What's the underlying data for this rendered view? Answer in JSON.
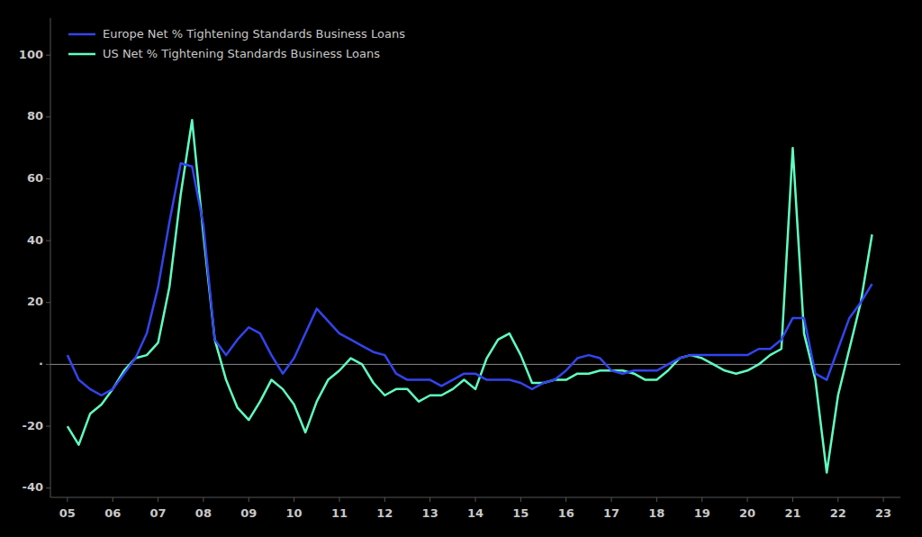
{
  "chart_data": {
    "type": "line",
    "x": [
      2005,
      2005.25,
      2005.5,
      2005.75,
      2006,
      2006.25,
      2006.5,
      2006.75,
      2007,
      2007.25,
      2007.5,
      2007.75,
      2008,
      2008.25,
      2008.5,
      2008.75,
      2009,
      2009.25,
      2009.5,
      2009.75,
      2010,
      2010.25,
      2010.5,
      2010.75,
      2011,
      2011.25,
      2011.5,
      2011.75,
      2012,
      2012.25,
      2012.5,
      2012.75,
      2013,
      2013.25,
      2013.5,
      2013.75,
      2014,
      2014.25,
      2014.5,
      2014.75,
      2015,
      2015.25,
      2015.5,
      2015.75,
      2016,
      2016.25,
      2016.5,
      2016.75,
      2017,
      2017.25,
      2017.5,
      2017.75,
      2018,
      2018.25,
      2018.5,
      2018.75,
      2019,
      2019.25,
      2019.5,
      2019.75,
      2020,
      2020.25,
      2020.5,
      2020.75,
      2021,
      2021.25,
      2021.5,
      2021.75,
      2022,
      2022.25,
      2022.5,
      2022.75
    ],
    "series": [
      {
        "name": "Europe Net % Tightening Standards Business Loans",
        "color": "#3344ee",
        "values": [
          3,
          -5,
          -8,
          -10,
          -8,
          -3,
          2,
          10,
          25,
          46,
          65,
          64,
          45,
          8,
          3,
          8,
          12,
          10,
          3,
          -3,
          2,
          10,
          18,
          14,
          10,
          8,
          6,
          4,
          3,
          -3,
          -5,
          -5,
          -5,
          -7,
          -5,
          -3,
          -3,
          -5,
          -5,
          -5,
          -6,
          -8,
          -6,
          -5,
          -2,
          2,
          3,
          2,
          -2,
          -3,
          -2,
          -2,
          -2,
          0,
          2,
          3,
          3,
          3,
          3,
          3,
          3,
          5,
          5,
          8,
          15,
          15,
          -3,
          -5,
          5,
          15,
          20,
          26
        ]
      },
      {
        "name": "US Net % Tightening Standards Business Loans",
        "color": "#5fffc0",
        "values": [
          -20,
          -26,
          -16,
          -13,
          -8,
          -2,
          2,
          3,
          7,
          25,
          55,
          79,
          42,
          8,
          -5,
          -14,
          -18,
          -12,
          -5,
          -8,
          -13,
          -22,
          -12,
          -5,
          -2,
          2,
          0,
          -6,
          -10,
          -8,
          -8,
          -12,
          -10,
          -10,
          -8,
          -5,
          -8,
          2,
          8,
          10,
          3,
          -6,
          -6,
          -5,
          -5,
          -3,
          -3,
          -2,
          -2,
          -2,
          -3,
          -5,
          -5,
          -2,
          2,
          3,
          2,
          0,
          -2,
          -3,
          -2,
          0,
          3,
          5,
          70,
          10,
          -5,
          -35,
          -10,
          5,
          20,
          42
        ]
      }
    ],
    "xlim": [
      2004.625,
      2023.375
    ],
    "xticks": [
      {
        "value": 2005,
        "label": "05"
      },
      {
        "value": 2006,
        "label": "06"
      },
      {
        "value": 2007,
        "label": "07"
      },
      {
        "value": 2008,
        "label": "08"
      },
      {
        "value": 2009,
        "label": "09"
      },
      {
        "value": 2010,
        "label": "10"
      },
      {
        "value": 2011,
        "label": "11"
      },
      {
        "value": 2012,
        "label": "12"
      },
      {
        "value": 2013,
        "label": "13"
      },
      {
        "value": 2014,
        "label": "14"
      },
      {
        "value": 2015,
        "label": "15"
      },
      {
        "value": 2016,
        "label": "16"
      },
      {
        "value": 2017,
        "label": "17"
      },
      {
        "value": 2018,
        "label": "18"
      },
      {
        "value": 2019,
        "label": "19"
      },
      {
        "value": 2020,
        "label": "20"
      },
      {
        "value": 2021,
        "label": "21"
      },
      {
        "value": 2022,
        "label": "22"
      },
      {
        "value": 2023,
        "label": "23"
      }
    ],
    "ylim": [
      -43,
      112
    ],
    "yticks": [
      -40,
      -20,
      {
        "value": 0,
        "label": "·"
      },
      20,
      40,
      60,
      80,
      100
    ],
    "grid": false,
    "legend": "upper left"
  }
}
